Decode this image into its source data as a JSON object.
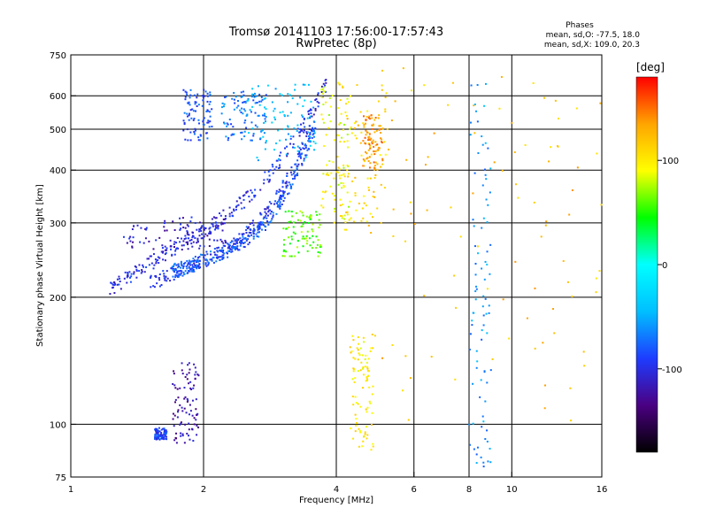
{
  "chart_data": {
    "type": "scatter",
    "title": "Tromsø 20141103 17:56:00-17:57:43",
    "subtitle": "RwPretec (8p)",
    "xlabel": "Frequency [MHz]",
    "ylabel": "Stationary phase Virtual Height [km]",
    "x_scale": "log",
    "y_scale": "log",
    "xlim": [
      1,
      16
    ],
    "ylim": [
      75,
      750
    ],
    "x_ticks": [
      1,
      2,
      4,
      6,
      8,
      10,
      16
    ],
    "y_ticks": [
      75,
      100,
      200,
      300,
      400,
      500,
      600,
      750
    ],
    "grid": true,
    "stats": {
      "heading": "Phases",
      "line1": "mean, sd,O: -77.5, 18.0",
      "line2": "mean, sd,X: 109.0, 20.3"
    },
    "colorbar": {
      "label": "[deg]",
      "ticks": [
        100,
        0,
        -100
      ],
      "range": [
        -180,
        180
      ],
      "colors": [
        "#000000",
        "#4b0082",
        "#1e3cff",
        "#00bfff",
        "#00ffff",
        "#00ff00",
        "#ffff00",
        "#ffa500",
        "#ff0000"
      ]
    },
    "series": [
      {
        "traces": [
          {
            "f0": 1.22,
            "f1": 3.8,
            "h0": 208,
            "h1": 380,
            "shape": "curve",
            "hMax": 640,
            "phase": -100
          },
          {
            "f0": 1.5,
            "f1": 3.5,
            "h0": 215,
            "h1": 300,
            "shape": "curve",
            "hMax": 500,
            "phase": -95
          },
          {
            "f0": 1.7,
            "f1": 3.6,
            "h0": 230,
            "h1": 300,
            "shape": "curve",
            "hMax": 520,
            "phase": -80
          },
          {
            "f0": 1.8,
            "f1": 2.1,
            "h0": 470,
            "h1": 620,
            "shape": "band",
            "phase": -85
          },
          {
            "f0": 2.2,
            "f1": 2.8,
            "h0": 470,
            "h1": 620,
            "shape": "band",
            "phase": -70
          },
          {
            "f0": 2.5,
            "f1": 3.6,
            "h0": 420,
            "h1": 640,
            "shape": "band",
            "phase": -45
          },
          {
            "f0": 3.0,
            "f1": 3.7,
            "h0": 250,
            "h1": 320,
            "shape": "band",
            "phase": 60
          },
          {
            "f0": 3.7,
            "f1": 4.3,
            "h0": 300,
            "h1": 650,
            "shape": "band",
            "phase": 90
          },
          {
            "f0": 4.0,
            "f1": 5.2,
            "h0": 280,
            "h1": 640,
            "shape": "band",
            "phase": 110
          },
          {
            "f0": 4.6,
            "f1": 5.1,
            "h0": 400,
            "h1": 540,
            "shape": "band",
            "phase": 140
          },
          {
            "f0": 1.3,
            "f1": 2.3,
            "h0": 260,
            "h1": 310,
            "shape": "band",
            "phase": -110
          },
          {
            "f0": 1.7,
            "f1": 1.95,
            "h0": 90,
            "h1": 140,
            "shape": "band",
            "phase": -120
          },
          {
            "f0": 1.55,
            "f1": 1.65,
            "h0": 92,
            "h1": 98,
            "shape": "band",
            "phase": -90
          },
          {
            "f0": 4.3,
            "f1": 4.9,
            "h0": 86,
            "h1": 165,
            "shape": "band",
            "phase": 100
          },
          {
            "f0": 5.0,
            "f1": 16.0,
            "h0": 95,
            "h1": 700,
            "shape": "band",
            "phase": 120
          },
          {
            "f0": 8.0,
            "f1": 9.0,
            "h0": 76,
            "h1": 650,
            "shape": "band",
            "phase": -60
          }
        ]
      }
    ]
  }
}
